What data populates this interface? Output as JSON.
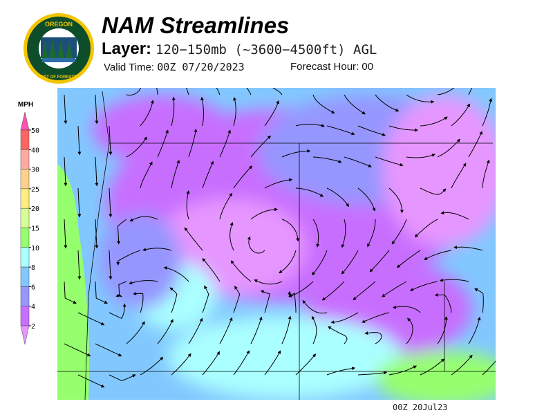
{
  "header": {
    "title": "NAM Streamlines",
    "layer_label": "Layer:",
    "layer_value": "120−150mb (~3600−4500ft) AGL",
    "valid_label": "Valid Time:",
    "valid_value": "00Z 07/20/2023",
    "forecast_label": "Forecast Hour:",
    "forecast_value": "00"
  },
  "logo": {
    "text_top": "OREGON",
    "text_bottom": "DEPARTMENT OF FORESTRY",
    "colors": {
      "ring": "#f2c500",
      "field": "#0e4d2a"
    }
  },
  "legend": {
    "unit": "MPH",
    "ticks": [
      "50",
      "40",
      "30",
      "25",
      "20",
      "15",
      "10",
      "8",
      "6",
      "4",
      "2"
    ],
    "colors": [
      "#ff6464",
      "#ffaaa0",
      "#ffd28c",
      "#ffee82",
      "#d8ff96",
      "#96ff6e",
      "#aaffff",
      "#82c8ff",
      "#9696ff",
      "#c86eff"
    ],
    "top_arrow_color": "#ff50b4",
    "bottom_arrow_color": "#e696ff"
  },
  "map": {
    "colors": {
      "purple": "#c86eff",
      "violet": "#9696ff",
      "pink": "#e696ff",
      "blue": "#82c8ff",
      "cyan": "#aaffff",
      "green": "#96ff6e"
    }
  },
  "footer": {
    "timestamp": "00Z 20Jul23"
  }
}
